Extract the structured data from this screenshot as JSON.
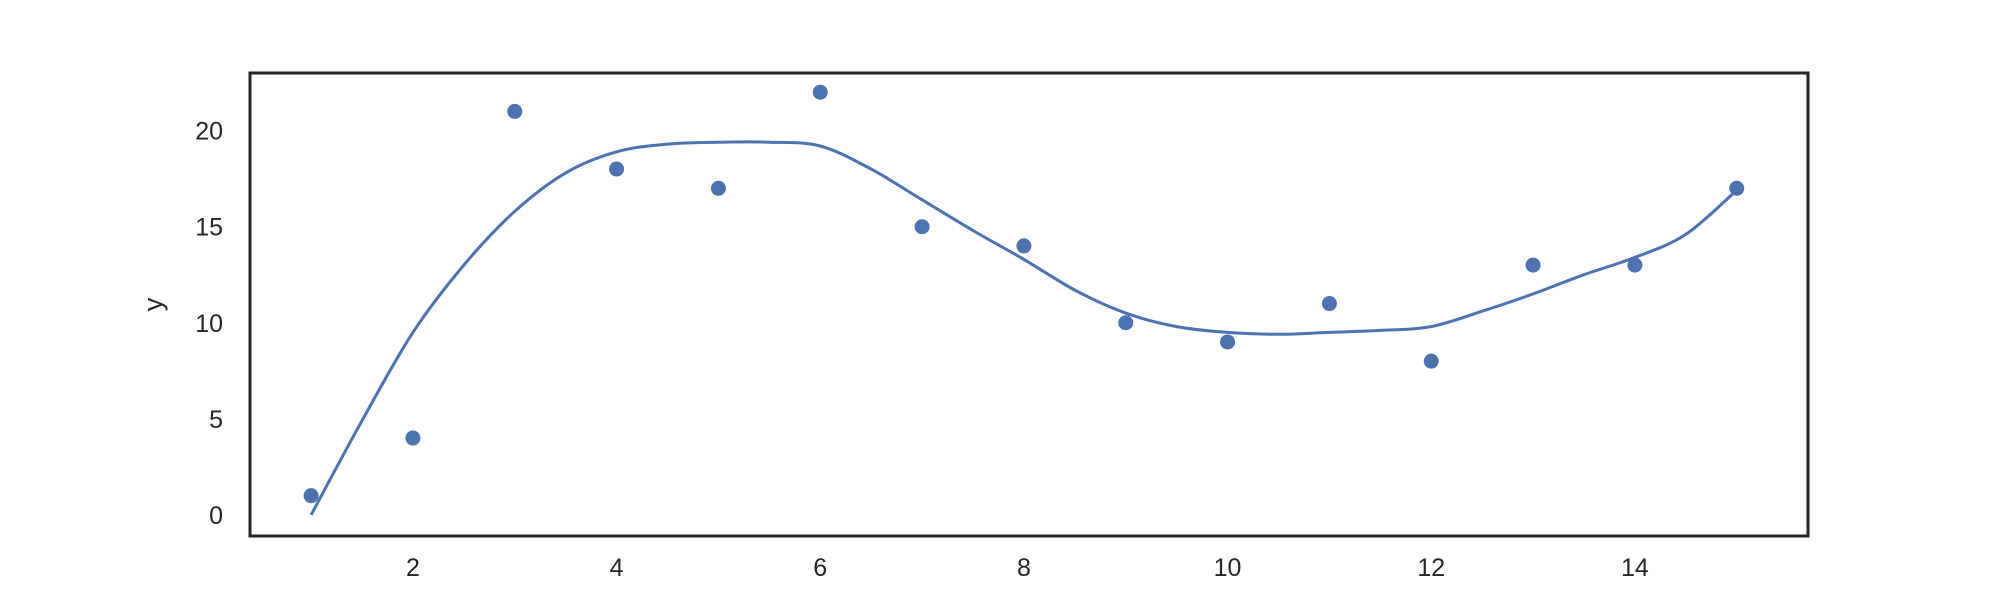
{
  "chart_data": {
    "type": "scatter",
    "xlabel": "",
    "ylabel": "y",
    "xlim": [
      0.4,
      15.7
    ],
    "ylim": [
      -1.1,
      23.0
    ],
    "xticks": [
      2,
      4,
      6,
      8,
      10,
      12,
      14
    ],
    "xtick_labels": [
      "2",
      "4",
      "6",
      "8",
      "10",
      "12",
      "14"
    ],
    "yticks": [
      0,
      5,
      10,
      15,
      20
    ],
    "ytick_labels": [
      "0",
      "5",
      "10",
      "15",
      "20"
    ],
    "grid": false,
    "legend": "none",
    "color": "#4c72b0",
    "points": {
      "x": [
        1,
        2,
        3,
        4,
        5,
        6,
        7,
        8,
        9,
        10,
        11,
        12,
        13,
        14,
        15
      ],
      "y": [
        1,
        4,
        21,
        18,
        17,
        22,
        15,
        14,
        10,
        9,
        11,
        8,
        13,
        13,
        17
      ]
    },
    "curve": {
      "x": [
        1,
        1.5,
        2,
        2.5,
        3,
        3.5,
        4,
        4.5,
        5,
        5.5,
        6,
        6.5,
        7,
        7.5,
        8,
        8.5,
        9,
        9.5,
        10,
        10.5,
        11,
        11.5,
        12,
        12.5,
        13,
        13.5,
        14,
        14.5,
        15
      ],
      "y": [
        0,
        4.9,
        9.5,
        13.0,
        15.8,
        17.8,
        18.9,
        19.3,
        19.4,
        19.4,
        19.2,
        18.0,
        16.4,
        14.8,
        13.3,
        11.7,
        10.5,
        9.8,
        9.5,
        9.4,
        9.5,
        9.6,
        9.8,
        10.6,
        11.5,
        12.5,
        13.4,
        14.6,
        16.9
      ]
    }
  }
}
